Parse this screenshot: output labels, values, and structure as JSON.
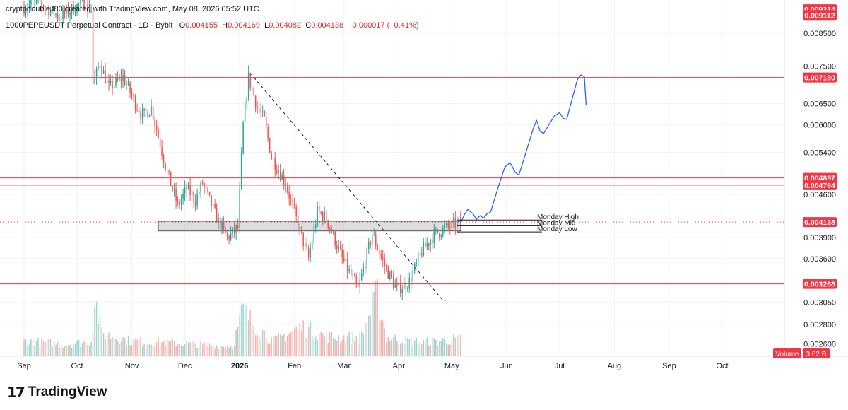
{
  "header": {
    "created_by": "cryptodoubleJ80 created with TradingView.com, May 08, 2026 05:52 UTC",
    "symbol": "1000PEPEUSDT Perpetual Contract · 1D · Bybit",
    "o_label": "O",
    "o_value": "0.004155",
    "h_label": "H",
    "h_value": "0.004169",
    "l_label": "L",
    "l_value": "0.004082",
    "c_label": "C",
    "c_value": "0.004138",
    "change": "−0.000017 (−0.41%)"
  },
  "brand": {
    "mark": "17",
    "name": "TradingView"
  },
  "colors": {
    "up": "#26a69a",
    "down": "#ef5350",
    "up_vol": "#9bd6cf",
    "down_vol": "#f6b3b1",
    "hline": "#f23645",
    "projection": "#2962ff",
    "label_bg": "#f23645",
    "label_text": "#ffffff"
  },
  "chart_data": {
    "type": "candlestick",
    "y_scale": "log",
    "ylim": [
      0.00248,
      0.00965
    ],
    "x_range": [
      "2025-09-01",
      "2026-10-31"
    ],
    "x_ticks": [
      {
        "date": "2025-09-01",
        "label": "Sep"
      },
      {
        "date": "2025-10-01",
        "label": "Oct"
      },
      {
        "date": "2025-11-01",
        "label": "Nov"
      },
      {
        "date": "2025-12-01",
        "label": "Dec"
      },
      {
        "date": "2026-01-01",
        "label": "2026"
      },
      {
        "date": "2026-02-01",
        "label": "Feb"
      },
      {
        "date": "2026-03-01",
        "label": "Mar"
      },
      {
        "date": "2026-04-01",
        "label": "Apr"
      },
      {
        "date": "2026-05-01",
        "label": "May"
      },
      {
        "date": "2026-06-01",
        "label": "Jun"
      },
      {
        "date": "2026-07-01",
        "label": "Jul"
      },
      {
        "date": "2026-08-01",
        "label": "Aug"
      },
      {
        "date": "2026-09-01",
        "label": "Sep"
      },
      {
        "date": "2026-10-01",
        "label": "Oct"
      }
    ],
    "y_ticks": [
      "0.008500",
      "0.007500",
      "0.006500",
      "0.006000",
      "0.005400",
      "0.004600",
      "0.003900",
      "0.003600",
      "0.003050",
      "0.002800",
      "0.002600"
    ],
    "price_labels": [
      "0.009314",
      "0.009112",
      "0.007180",
      "0.004897",
      "0.004764",
      "0.004138",
      "0.003268"
    ],
    "horizontal_lines": [
      {
        "price": 0.00718
      },
      {
        "price": 0.004897
      },
      {
        "price": 0.004764
      },
      {
        "price": 0.003268
      }
    ],
    "last_price": 0.004138,
    "range_box": {
      "start": "2025-11-16",
      "end": "2026-05-06",
      "high": 0.00415,
      "low": 0.004
    },
    "monday_levels": [
      {
        "label": "Monday High",
        "price": 0.00417,
        "start": "2026-05-04"
      },
      {
        "label": "Monday Mid",
        "price": 0.00408,
        "start": "2026-05-04"
      },
      {
        "label": "Monday Low",
        "price": 0.003985,
        "start": "2026-05-04"
      }
    ],
    "trendline": [
      {
        "date": "2026-01-07",
        "price": 0.0073
      },
      {
        "date": "2026-04-26",
        "price": 0.00307
      }
    ],
    "projection": [
      {
        "date": "2026-05-06",
        "price": 0.00412
      },
      {
        "date": "2026-05-08",
        "price": 0.00425
      },
      {
        "date": "2026-05-10",
        "price": 0.00434
      },
      {
        "date": "2026-05-13",
        "price": 0.00427
      },
      {
        "date": "2026-05-15",
        "price": 0.00418
      },
      {
        "date": "2026-05-17",
        "price": 0.00424
      },
      {
        "date": "2026-05-19",
        "price": 0.0042
      },
      {
        "date": "2026-05-21",
        "price": 0.00427
      },
      {
        "date": "2026-05-23",
        "price": 0.0043
      },
      {
        "date": "2026-05-27",
        "price": 0.0047
      },
      {
        "date": "2026-05-31",
        "price": 0.0051
      },
      {
        "date": "2026-06-03",
        "price": 0.00519
      },
      {
        "date": "2026-06-06",
        "price": 0.005
      },
      {
        "date": "2026-06-08",
        "price": 0.00495
      },
      {
        "date": "2026-06-12",
        "price": 0.0054
      },
      {
        "date": "2026-06-16",
        "price": 0.0059
      },
      {
        "date": "2026-06-18",
        "price": 0.0061
      },
      {
        "date": "2026-06-20",
        "price": 0.00585
      },
      {
        "date": "2026-06-22",
        "price": 0.0058
      },
      {
        "date": "2026-06-25",
        "price": 0.006
      },
      {
        "date": "2026-06-28",
        "price": 0.0062
      },
      {
        "date": "2026-07-01",
        "price": 0.00628
      },
      {
        "date": "2026-07-03",
        "price": 0.00615
      },
      {
        "date": "2026-07-05",
        "price": 0.00612
      },
      {
        "date": "2026-07-08",
        "price": 0.0066
      },
      {
        "date": "2026-07-11",
        "price": 0.00712
      },
      {
        "date": "2026-07-13",
        "price": 0.00725
      },
      {
        "date": "2026-07-15",
        "price": 0.0072
      },
      {
        "date": "2026-07-16",
        "price": 0.00647
      }
    ],
    "volume_label": "Volume",
    "volume_value": "3.62 B",
    "volume_ylim": [
      0,
      5.6
    ],
    "volume_anchors": [
      {
        "date": "2025-09-01",
        "value": 1.35
      },
      {
        "date": "2025-09-25",
        "value": 1.0
      },
      {
        "date": "2025-10-09",
        "value": 1.3
      },
      {
        "date": "2025-10-11",
        "value": 5.2
      },
      {
        "date": "2025-10-15",
        "value": 2.0
      },
      {
        "date": "2025-11-01",
        "value": 1.3
      },
      {
        "date": "2025-12-01",
        "value": 1.1
      },
      {
        "date": "2025-12-28",
        "value": 0.8
      },
      {
        "date": "2026-01-03",
        "value": 4.2
      },
      {
        "date": "2026-01-07",
        "value": 3.2
      },
      {
        "date": "2026-01-20",
        "value": 1.3
      },
      {
        "date": "2026-02-05",
        "value": 2.6
      },
      {
        "date": "2026-02-20",
        "value": 1.7
      },
      {
        "date": "2026-03-10",
        "value": 1.6
      },
      {
        "date": "2026-03-20",
        "value": 5.5
      },
      {
        "date": "2026-03-25",
        "value": 1.6
      },
      {
        "date": "2026-04-15",
        "value": 1.2
      },
      {
        "date": "2026-05-07",
        "value": 1.5
      }
    ],
    "price_anchors": [
      {
        "date": "2025-09-01",
        "price": 0.00935
      },
      {
        "date": "2025-09-10",
        "price": 0.0096
      },
      {
        "date": "2025-09-22",
        "price": 0.00905
      },
      {
        "date": "2025-10-05",
        "price": 0.00955
      },
      {
        "date": "2025-10-10",
        "price": 0.0093
      },
      {
        "date": "2025-10-11",
        "price": 0.007
      },
      {
        "date": "2025-10-15",
        "price": 0.0076
      },
      {
        "date": "2025-10-20",
        "price": 0.0069
      },
      {
        "date": "2025-10-28",
        "price": 0.0072
      },
      {
        "date": "2025-11-03",
        "price": 0.0066
      },
      {
        "date": "2025-11-08",
        "price": 0.0062
      },
      {
        "date": "2025-11-13",
        "price": 0.0064
      },
      {
        "date": "2025-11-22",
        "price": 0.005
      },
      {
        "date": "2025-11-28",
        "price": 0.0044
      },
      {
        "date": "2025-12-03",
        "price": 0.0047
      },
      {
        "date": "2025-12-08",
        "price": 0.0045
      },
      {
        "date": "2025-12-12",
        "price": 0.0048
      },
      {
        "date": "2025-12-20",
        "price": 0.0042
      },
      {
        "date": "2025-12-26",
        "price": 0.0039
      },
      {
        "date": "2026-01-01",
        "price": 0.00405
      },
      {
        "date": "2026-01-04",
        "price": 0.006
      },
      {
        "date": "2026-01-07",
        "price": 0.00718
      },
      {
        "date": "2026-01-12",
        "price": 0.0064
      },
      {
        "date": "2026-01-16",
        "price": 0.0061
      },
      {
        "date": "2026-01-20",
        "price": 0.0053
      },
      {
        "date": "2026-01-28",
        "price": 0.0048
      },
      {
        "date": "2026-02-05",
        "price": 0.004
      },
      {
        "date": "2026-02-10",
        "price": 0.0036
      },
      {
        "date": "2026-02-15",
        "price": 0.0043
      },
      {
        "date": "2026-02-20",
        "price": 0.0042
      },
      {
        "date": "2026-03-01",
        "price": 0.0036
      },
      {
        "date": "2026-03-10",
        "price": 0.0032
      },
      {
        "date": "2026-03-18",
        "price": 0.00395
      },
      {
        "date": "2026-03-25",
        "price": 0.0035
      },
      {
        "date": "2026-04-01",
        "price": 0.0032
      },
      {
        "date": "2026-04-08",
        "price": 0.0033
      },
      {
        "date": "2026-04-15",
        "price": 0.0037
      },
      {
        "date": "2026-04-22",
        "price": 0.00395
      },
      {
        "date": "2026-04-29",
        "price": 0.00405
      },
      {
        "date": "2026-05-07",
        "price": 0.00414
      }
    ]
  }
}
